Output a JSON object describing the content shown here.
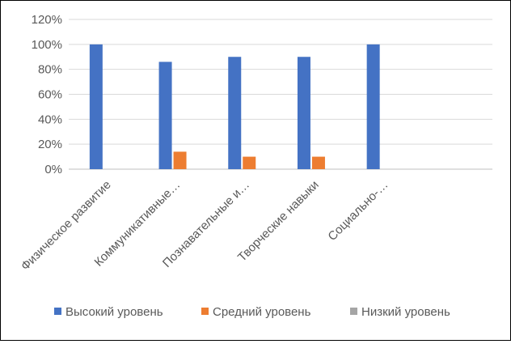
{
  "chart_data": {
    "type": "bar",
    "categories": [
      "Физическое развитие",
      "Коммуникативные…",
      "Познавательные и…",
      "Творческие навыки",
      "Социально-…"
    ],
    "series": [
      {
        "name": "Высокий уровень",
        "color": "#4472C4",
        "values": [
          100,
          86,
          90,
          90,
          100
        ]
      },
      {
        "name": "Средний уровень",
        "color": "#ED7D31",
        "values": [
          0,
          14,
          10,
          10,
          0
        ]
      },
      {
        "name": "Низкий уровень",
        "color": "#A5A5A5",
        "values": [
          0,
          0,
          0,
          0,
          0
        ]
      }
    ],
    "y_ticks": [
      "0%",
      "20%",
      "40%",
      "60%",
      "80%",
      "100%",
      "120%"
    ],
    "ylim": [
      0,
      120
    ],
    "y_unit": "%",
    "grid": true,
    "legend_position": "bottom",
    "title": "",
    "xlabel": "",
    "ylabel": ""
  }
}
